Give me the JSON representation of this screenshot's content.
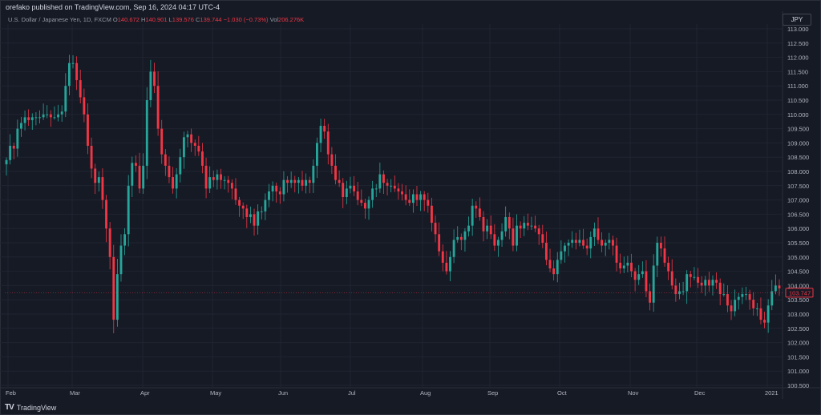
{
  "header": {
    "published": "orefako published on TradingView.com, Sep 16, 2024 04:17 UTC-4",
    "symbol": "U.S. Dollar / Japanese Yen, 1D, FXCM",
    "ohlc": {
      "o_label": "O",
      "o": "140.672",
      "h_label": "H",
      "h": "140.901",
      "l_label": "L",
      "l": "139.576",
      "c_label": "C",
      "c": "139.744",
      "chg": "−1.030 (−0.73%)",
      "vol_label": "Vol",
      "vol": "206.276K"
    }
  },
  "currency_badge": "JPY",
  "footer": {
    "logo": "TV",
    "brand": "TradingView"
  },
  "colors": {
    "up": "#26a69a",
    "down": "#f23645",
    "grid": "#1f2431",
    "axis_text": "#b2b5be",
    "background": "#161a25"
  },
  "chart_data": {
    "type": "candlestick",
    "x_tick_labels": [
      "Feb",
      "Mar",
      "Apr",
      "May",
      "Jun",
      "Jul",
      "Aug",
      "Sep",
      "Oct",
      "Nov",
      "Dec",
      "2021"
    ],
    "y_tick_labels": [
      "113.000",
      "112.500",
      "112.000",
      "111.500",
      "111.000",
      "110.500",
      "110.000",
      "109.500",
      "109.000",
      "108.500",
      "108.000",
      "107.500",
      "107.000",
      "106.500",
      "106.000",
      "105.500",
      "105.000",
      "104.500",
      "104.000",
      "103.500",
      "103.000",
      "102.500",
      "102.000",
      "101.500",
      "101.000",
      "100.500"
    ],
    "ylim": [
      100.5,
      113.0
    ],
    "last_price": "103.747",
    "grid": true,
    "closes": [
      108.4,
      108.9,
      108.8,
      109.5,
      109.7,
      109.9,
      109.8,
      109.9,
      109.9,
      109.9,
      110.0,
      110.0,
      109.9,
      109.9,
      110.0,
      110.1,
      111.0,
      111.8,
      111.8,
      111.2,
      110.6,
      110.0,
      108.9,
      108.1,
      107.6,
      107.8,
      107.0,
      106.0,
      105.0,
      102.8,
      104.4,
      105.4,
      105.8,
      107.5,
      108.3,
      108.2,
      107.4,
      108.2,
      110.5,
      111.5,
      111.0,
      109.5,
      108.6,
      108.2,
      107.8,
      107.4,
      107.9,
      108.5,
      109.2,
      109.3,
      109.0,
      108.9,
      108.7,
      108.2,
      107.4,
      107.8,
      107.7,
      107.9,
      107.7,
      107.7,
      107.6,
      107.4,
      107.0,
      106.8,
      106.7,
      106.4,
      106.5,
      106.1,
      106.6,
      106.6,
      107.0,
      107.3,
      107.5,
      107.3,
      107.2,
      107.7,
      107.6,
      107.7,
      107.6,
      107.7,
      107.5,
      107.7,
      107.6,
      108.2,
      109.0,
      109.6,
      109.4,
      108.6,
      108.2,
      107.7,
      107.6,
      107.1,
      107.4,
      107.5,
      107.3,
      107.0,
      106.9,
      106.7,
      107.0,
      107.4,
      107.4,
      107.9,
      107.6,
      107.5,
      107.5,
      107.4,
      107.3,
      107.2,
      107.0,
      106.9,
      107.2,
      107.0,
      107.2,
      107.0,
      106.8,
      106.2,
      105.8,
      105.2,
      104.8,
      104.5,
      105.0,
      105.6,
      105.7,
      105.6,
      105.9,
      106.1,
      106.8,
      106.7,
      106.4,
      105.9,
      106.1,
      105.8,
      105.4,
      105.6,
      105.9,
      106.4,
      106.0,
      105.4,
      106.1,
      106.0,
      106.2,
      106.1,
      106.1,
      106.0,
      105.8,
      105.5,
      104.9,
      104.6,
      104.4,
      104.9,
      105.2,
      105.4,
      105.5,
      105.6,
      105.5,
      105.6,
      105.4,
      105.3,
      105.7,
      106.0,
      105.6,
      105.4,
      105.5,
      105.6,
      105.4,
      104.8,
      104.6,
      104.7,
      104.8,
      104.5,
      104.2,
      104.4,
      104.5,
      103.8,
      103.4,
      104.7,
      105.5,
      105.3,
      104.8,
      104.5,
      104.0,
      103.7,
      103.8,
      103.8,
      104.4,
      104.3,
      104.3,
      104.1,
      104.0,
      104.2,
      104.0,
      104.2,
      104.1,
      103.7,
      103.7,
      103.3,
      103.1,
      103.5,
      103.6,
      103.7,
      103.7,
      103.5,
      103.2,
      103.2,
      102.8,
      102.7,
      103.3,
      103.8,
      104.0,
      103.9
    ]
  }
}
